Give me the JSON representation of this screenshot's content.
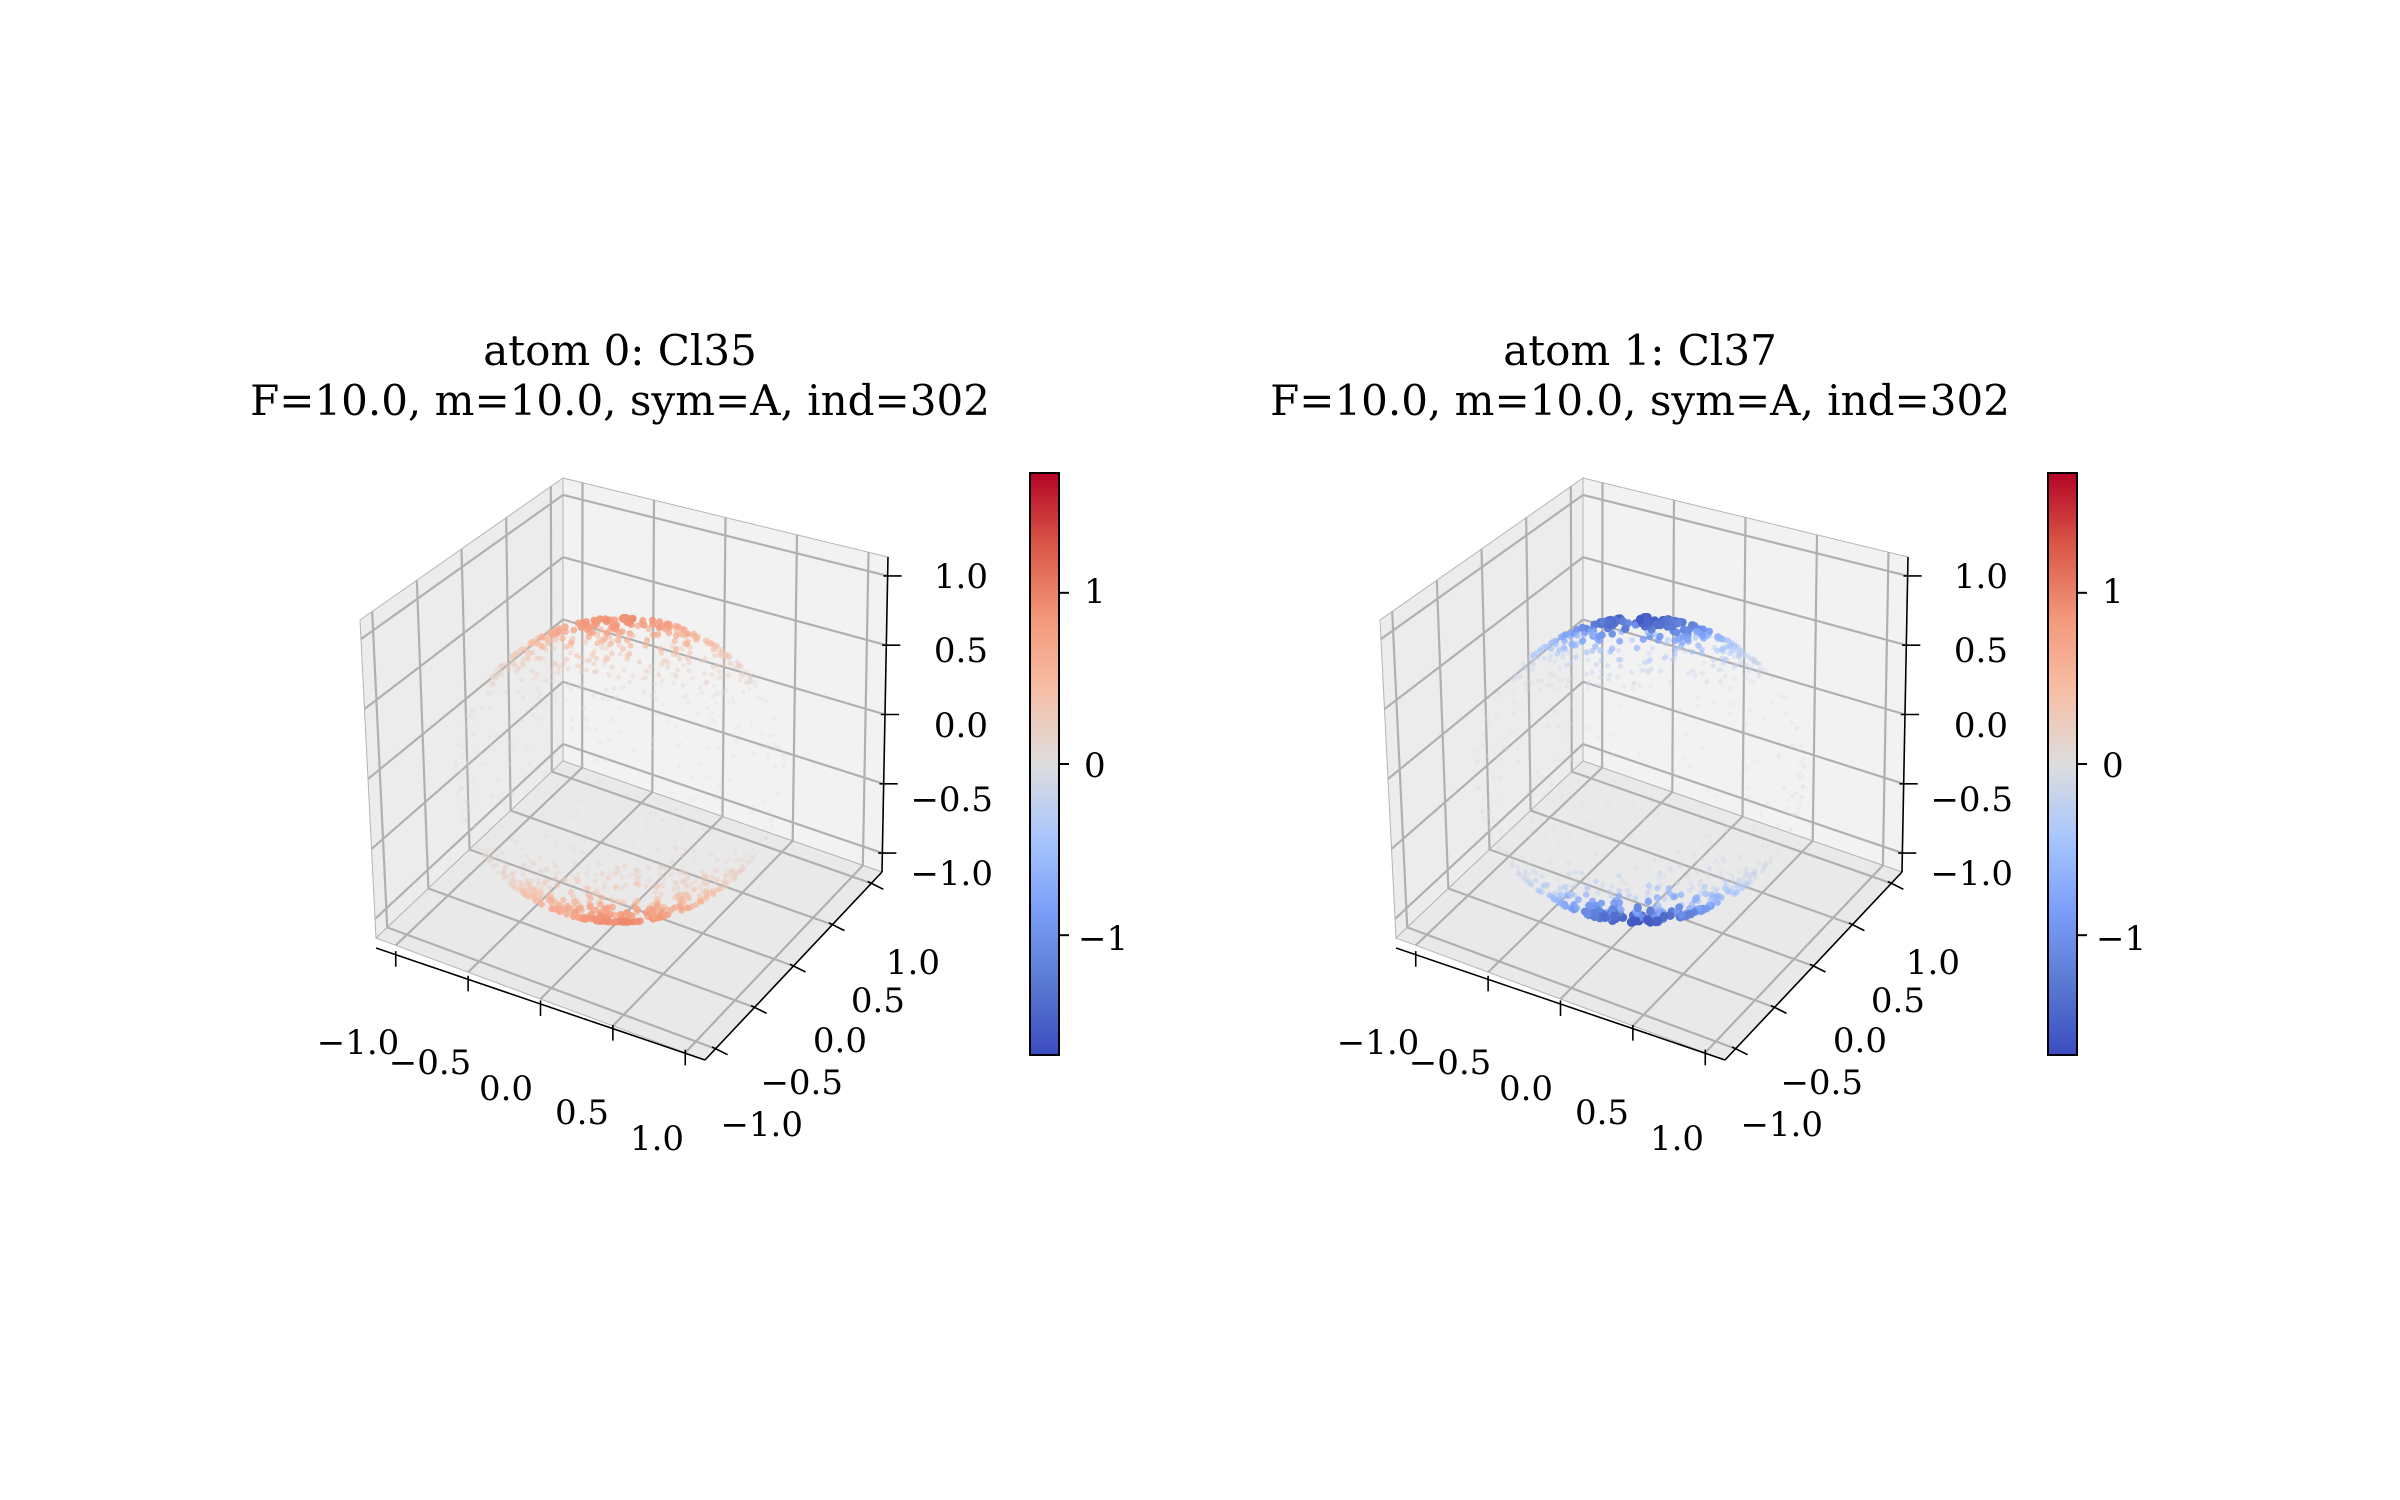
{
  "chart_data": [
    {
      "type": "scatter",
      "plot_kind": "3d-sphere-scatter",
      "title": "atom 0: Cl35",
      "subtitle": "F=10.0, m=10.0, sym=A, ind=302",
      "xlabel": "",
      "ylabel": "",
      "zlabel": "",
      "xlim": [
        -1.0,
        1.0
      ],
      "ylim": [
        -1.0,
        1.0
      ],
      "zlim": [
        -1.0,
        1.0
      ],
      "x_ticks": [
        "−1.0",
        "−0.5",
        "0.0",
        "0.5",
        "1.0"
      ],
      "y_ticks": [
        "−1.0",
        "−0.5",
        "0.0",
        "0.5",
        "1.0"
      ],
      "z_ticks": [
        "−1.0",
        "−0.5",
        "0.0",
        "0.5",
        "1.0"
      ],
      "grid": true,
      "colormap": "coolwarm",
      "color_range": [
        -1.7,
        1.7
      ],
      "colorbar_ticks": [
        "−1",
        "0",
        "1"
      ],
      "colorbar_tick_values": [
        -1,
        0,
        1
      ],
      "polar_value": 0.95,
      "value_law": "value = polar_value * z^4 on the unit sphere"
    },
    {
      "type": "scatter",
      "plot_kind": "3d-sphere-scatter",
      "title": "atom 1: Cl37",
      "subtitle": "F=10.0, m=10.0, sym=A, ind=302",
      "xlabel": "",
      "ylabel": "",
      "zlabel": "",
      "xlim": [
        -1.0,
        1.0
      ],
      "ylim": [
        -1.0,
        1.0
      ],
      "zlim": [
        -1.0,
        1.0
      ],
      "x_ticks": [
        "−1.0",
        "−0.5",
        "0.0",
        "0.5",
        "1.0"
      ],
      "y_ticks": [
        "−1.0",
        "−0.5",
        "0.0",
        "0.5",
        "1.0"
      ],
      "z_ticks": [
        "−1.0",
        "−0.5",
        "0.0",
        "0.5",
        "1.0"
      ],
      "grid": true,
      "colormap": "coolwarm",
      "color_range": [
        -1.7,
        1.7
      ],
      "colorbar_ticks": [
        "−1",
        "0",
        "1"
      ],
      "colorbar_tick_values": [
        -1,
        0,
        1
      ],
      "polar_value": -1.6,
      "value_law": "value = polar_value * z^6 on the unit sphere"
    }
  ],
  "colors": {
    "cmap_low": "#3b4cc0",
    "cmap_mid": "#dddddd",
    "cmap_high": "#b40426",
    "pane": "#f2f2f2",
    "grid": "#b0b0b0"
  }
}
